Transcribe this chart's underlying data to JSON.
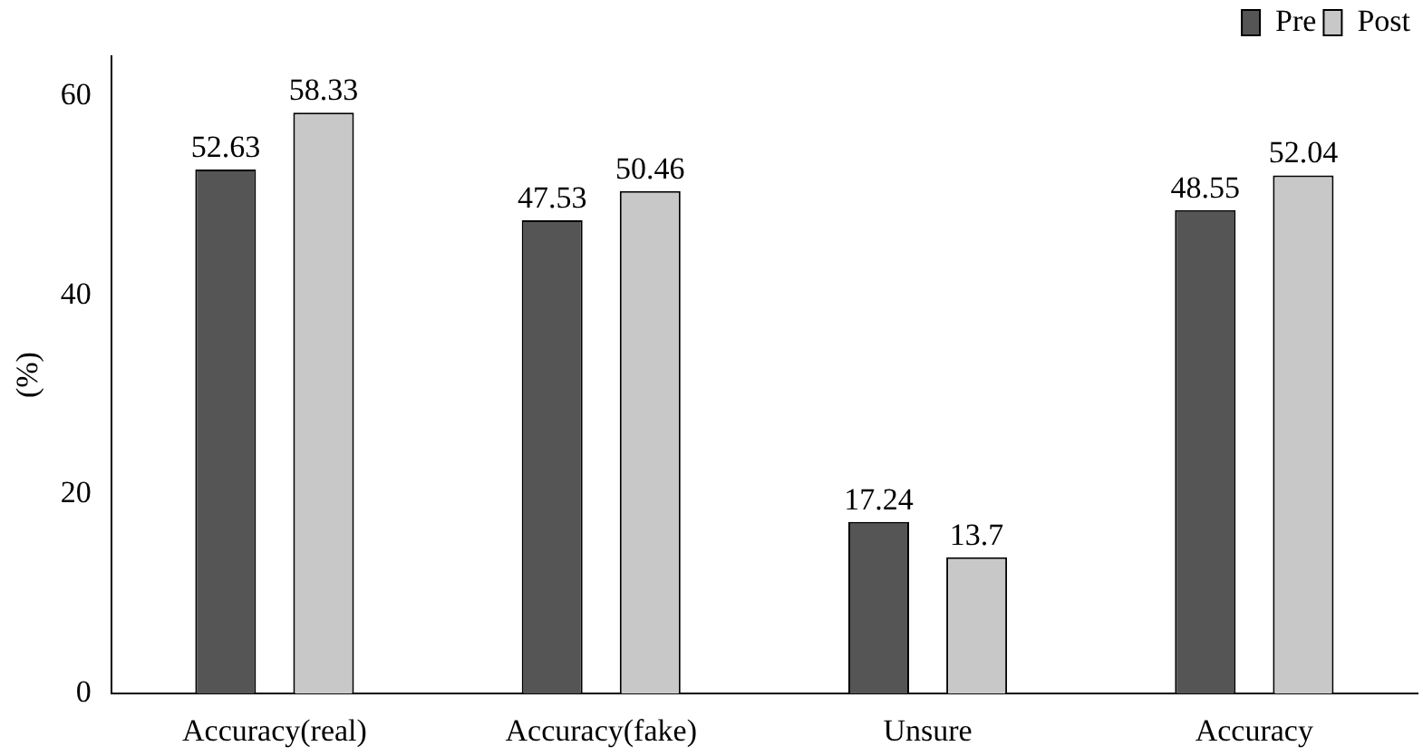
{
  "chart_data": {
    "type": "bar",
    "ylabel": "(%)",
    "categories": [
      "Accuracy(real)",
      "Accuracy(fake)",
      "Unsure",
      "Accuracy"
    ],
    "series": [
      {
        "name": "Pre",
        "color": "#555555",
        "values": [
          52.63,
          47.53,
          17.24,
          48.55
        ]
      },
      {
        "name": "Post",
        "color": "#c8c8c8",
        "values": [
          58.33,
          50.46,
          13.7,
          52.04
        ]
      }
    ],
    "ylim": [
      0,
      64
    ],
    "yticks": [
      0,
      20,
      40,
      60
    ],
    "grid": false,
    "legend": "top right",
    "data_labels": true
  }
}
